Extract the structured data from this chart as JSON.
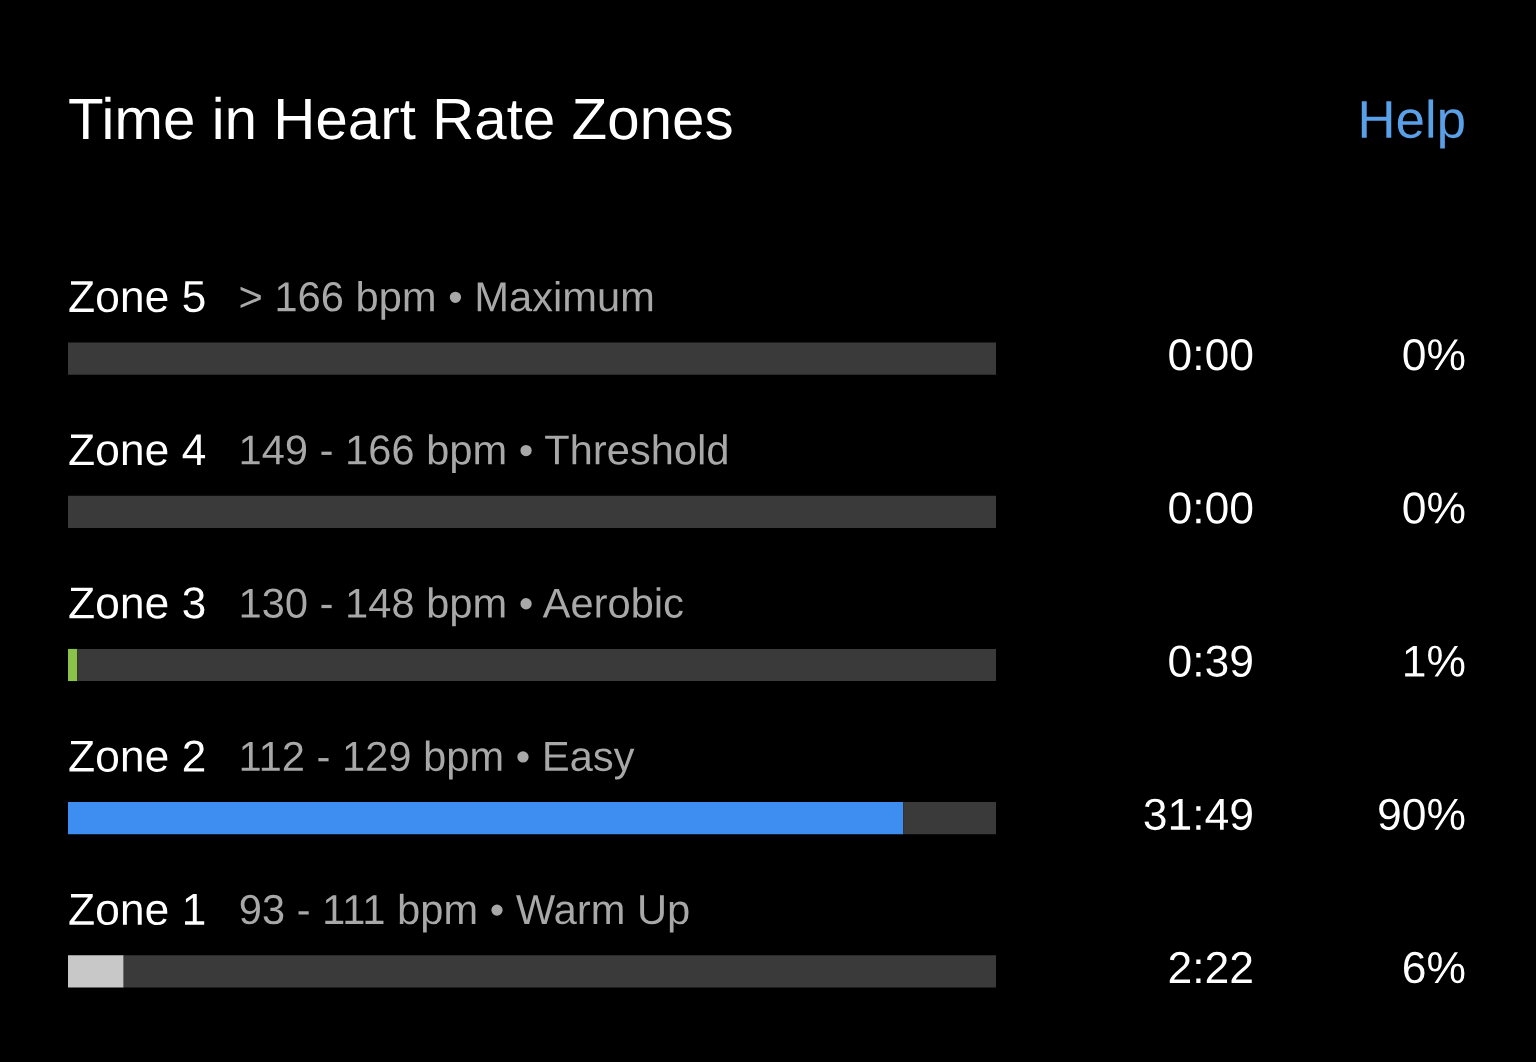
{
  "chart_data": {
    "type": "bar",
    "orientation": "horizontal",
    "stacked": true,
    "title": "Time in Heart Rate Zones",
    "categories": [
      "Zone 5",
      "Zone 4",
      "Zone 3",
      "Zone 2",
      "Zone 1"
    ],
    "series": [
      {
        "colors": [
          "#3a3a3a",
          "#3a3a3a",
          "#8bc34a",
          "#3d8ef0",
          "#c8c8c8"
        ],
        "values": [
          0,
          0,
          1,
          90,
          6
        ],
        "value_labels": [
          "0%",
          "0%",
          "1%",
          "90%",
          "6%"
        ]
      },
      {
        "color": "#3a3a3a",
        "values": [
          100,
          100,
          99,
          10,
          94
        ]
      }
    ],
    "xlim": [
      0,
      100
    ],
    "annotations": [
      "Help",
      "> 166 bpm • Maximum",
      "149 - 166 bpm • Threshold",
      "130 - 148 bpm • Aerobic",
      "112 - 129 bpm • Easy",
      "93 - 111 bpm • Warm Up",
      "0:00",
      "0:00",
      "0:39",
      "31:49",
      "2:22"
    ]
  }
}
